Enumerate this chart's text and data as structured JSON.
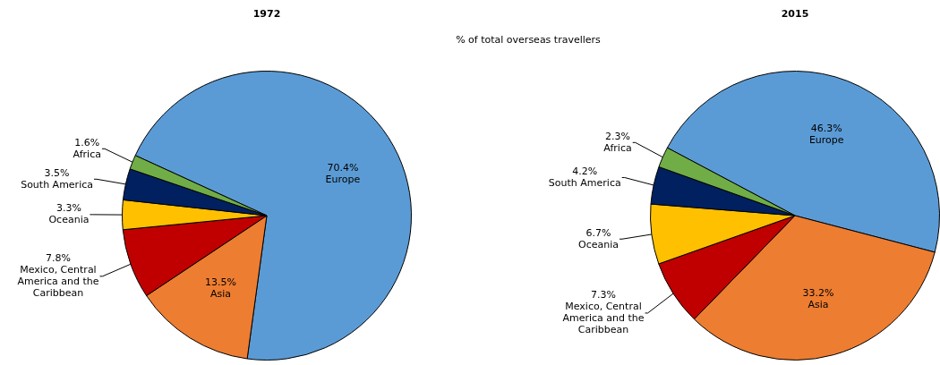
{
  "chart_data": [
    {
      "type": "pie",
      "title": "1972",
      "subtitle": "% of total overseas travellers",
      "categories": [
        "Europe",
        "Asia",
        "Mexico, Central America and the Caribbean",
        "Oceania",
        "South America",
        "Africa"
      ],
      "values": [
        70.4,
        13.5,
        7.8,
        3.3,
        3.5,
        1.6
      ],
      "colors": [
        "#5b9bd5",
        "#ed7d31",
        "#c00000",
        "#ffc000",
        "#002060",
        "#70ad47"
      ],
      "value_labels": [
        "70.4%",
        "13.5%",
        "7.8%",
        "3.3%",
        "3.5%",
        "1.6%"
      ]
    },
    {
      "type": "pie",
      "title": "2015",
      "categories": [
        "Europe",
        "Asia",
        "Mexico, Central America and the Caribbean",
        "Oceania",
        "South America",
        "Africa"
      ],
      "values": [
        46.3,
        33.2,
        7.3,
        6.7,
        4.2,
        2.3
      ],
      "colors": [
        "#5b9bd5",
        "#ed7d31",
        "#c00000",
        "#ffc000",
        "#002060",
        "#70ad47"
      ],
      "value_labels": [
        "46.3%",
        "33.2%",
        "7.3%",
        "6.7%",
        "4.2%",
        "2.3%"
      ]
    }
  ]
}
